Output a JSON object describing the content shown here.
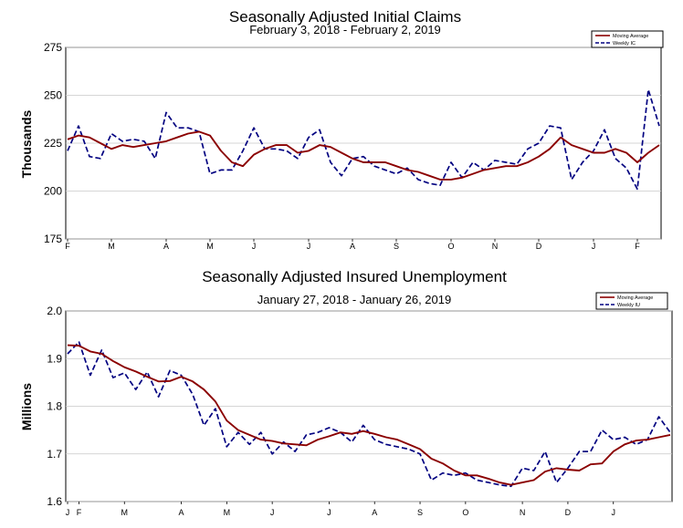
{
  "chart_data": [
    {
      "type": "line",
      "title": "Seasonally Adjusted Initial Claims",
      "subtitle": "February 3, 2018 - February 2, 2019",
      "ylabel": "Thousands",
      "xlabel": "",
      "ylim": [
        175,
        275
      ],
      "yticks": [
        175,
        200,
        225,
        250,
        275
      ],
      "grid": true,
      "legend": "top-right",
      "month_labels": [
        {
          "label": "F",
          "index": 0
        },
        {
          "label": "M",
          "index": 4
        },
        {
          "label": "A",
          "index": 9
        },
        {
          "label": "M",
          "index": 13
        },
        {
          "label": "J",
          "index": 17
        },
        {
          "label": "J",
          "index": 22
        },
        {
          "label": "A",
          "index": 26
        },
        {
          "label": "S",
          "index": 30
        },
        {
          "label": "O",
          "index": 35
        },
        {
          "label": "N",
          "index": 39
        },
        {
          "label": "D",
          "index": 43
        },
        {
          "label": "J",
          "index": 48
        },
        {
          "label": "F",
          "index": 52
        }
      ],
      "series": [
        {
          "name": "Moving Average",
          "style": "solid",
          "color": "#8b0000",
          "values": [
            227,
            229,
            228,
            225,
            222,
            224,
            223,
            224,
            225,
            226,
            228,
            230,
            231,
            229,
            221,
            215,
            213,
            219,
            222,
            224,
            224,
            220,
            221,
            224,
            223,
            220,
            217,
            215,
            215,
            215,
            213,
            211,
            210,
            208,
            206,
            206,
            207,
            209,
            211,
            212,
            213,
            213,
            215,
            218,
            222,
            228,
            224,
            222,
            220,
            220,
            222,
            220,
            215,
            220,
            224
          ]
        },
        {
          "name": "Weekly IC",
          "style": "dashed",
          "color": "#000080",
          "values": [
            221,
            234,
            218,
            217,
            230,
            226,
            227,
            226,
            217,
            241,
            233,
            233,
            231,
            209,
            211,
            211,
            221,
            233,
            222,
            222,
            221,
            217,
            228,
            232,
            215,
            208,
            217,
            218,
            213,
            211,
            209,
            212,
            206,
            204,
            203,
            215,
            207,
            215,
            211,
            216,
            215,
            214,
            222,
            225,
            234,
            233,
            206,
            215,
            221,
            232,
            217,
            212,
            201,
            253,
            234
          ]
        }
      ]
    },
    {
      "type": "line",
      "title": "Seasonally Adjusted Insured Unemployment",
      "subtitle": "January 27, 2018 - January 26, 2019",
      "ylabel": "Millions",
      "xlabel": "",
      "ylim": [
        1.6,
        2.0
      ],
      "yticks": [
        1.6,
        1.7,
        1.8,
        1.9,
        2.0
      ],
      "ytick_labels": [
        "1.6",
        "1.7",
        "1.8",
        "1.9",
        "2.0"
      ],
      "grid": true,
      "legend": "top-right",
      "month_labels": [
        {
          "label": "J",
          "index": 0
        },
        {
          "label": "F",
          "index": 1
        },
        {
          "label": "M",
          "index": 5
        },
        {
          "label": "A",
          "index": 10
        },
        {
          "label": "M",
          "index": 14
        },
        {
          "label": "J",
          "index": 18
        },
        {
          "label": "J",
          "index": 23
        },
        {
          "label": "A",
          "index": 27
        },
        {
          "label": "S",
          "index": 31
        },
        {
          "label": "O",
          "index": 35
        },
        {
          "label": "N",
          "index": 40
        },
        {
          "label": "D",
          "index": 44
        },
        {
          "label": "J",
          "index": 48
        }
      ],
      "series": [
        {
          "name": "Moving Average",
          "style": "solid",
          "color": "#8b0000",
          "values": [
            1.928,
            1.927,
            1.915,
            1.91,
            1.895,
            1.882,
            1.873,
            1.862,
            1.852,
            1.853,
            1.862,
            1.852,
            1.835,
            1.81,
            1.77,
            1.75,
            1.74,
            1.73,
            1.727,
            1.722,
            1.72,
            1.718,
            1.73,
            1.737,
            1.745,
            1.742,
            1.748,
            1.742,
            1.735,
            1.73,
            1.72,
            1.71,
            1.69,
            1.68,
            1.665,
            1.655,
            1.655,
            1.648,
            1.64,
            1.635,
            1.64,
            1.645,
            1.663,
            1.67,
            1.667,
            1.665,
            1.678,
            1.68,
            1.705,
            1.72,
            1.728,
            1.73,
            1.735,
            1.74
          ]
        },
        {
          "name": "Weekly IU",
          "style": "dashed",
          "color": "#000080",
          "values": [
            1.91,
            1.935,
            1.865,
            1.918,
            1.86,
            1.87,
            1.835,
            1.872,
            1.82,
            1.875,
            1.865,
            1.825,
            1.76,
            1.795,
            1.715,
            1.745,
            1.72,
            1.745,
            1.7,
            1.725,
            1.705,
            1.74,
            1.745,
            1.755,
            1.745,
            1.725,
            1.76,
            1.73,
            1.72,
            1.715,
            1.71,
            1.7,
            1.645,
            1.66,
            1.655,
            1.66,
            1.645,
            1.64,
            1.635,
            1.632,
            1.67,
            1.665,
            1.705,
            1.64,
            1.67,
            1.705,
            1.705,
            1.75,
            1.73,
            1.735,
            1.72,
            1.73,
            1.778,
            1.745
          ]
        }
      ]
    }
  ]
}
